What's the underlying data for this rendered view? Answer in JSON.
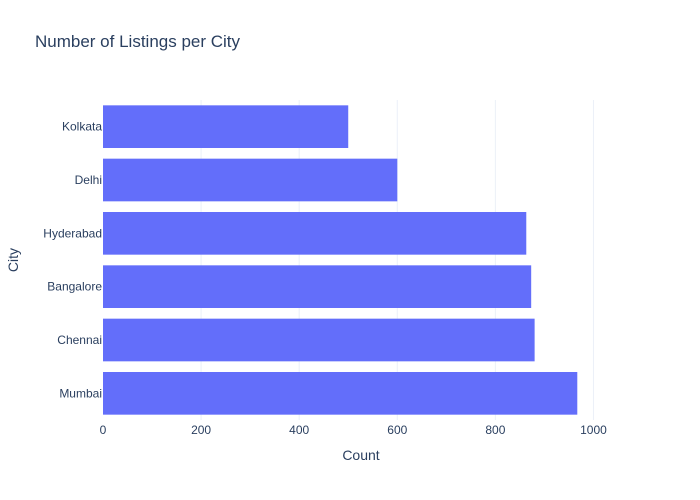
{
  "chart_data": {
    "type": "bar",
    "orientation": "horizontal",
    "title": "Number of Listings per City",
    "xlabel": "Count",
    "ylabel": "City",
    "categories": [
      "Mumbai",
      "Chennai",
      "Bangalore",
      "Hyderabad",
      "Delhi",
      "Kolkata"
    ],
    "values": [
      967,
      880,
      873,
      863,
      600,
      500
    ],
    "xlim": [
      0,
      1050
    ],
    "xticks": [
      0,
      200,
      400,
      600,
      800,
      1000
    ],
    "grid": true,
    "bar_color": "#636efa",
    "grid_color": "#ebf0f8",
    "text_color": "#2a3f5f"
  }
}
